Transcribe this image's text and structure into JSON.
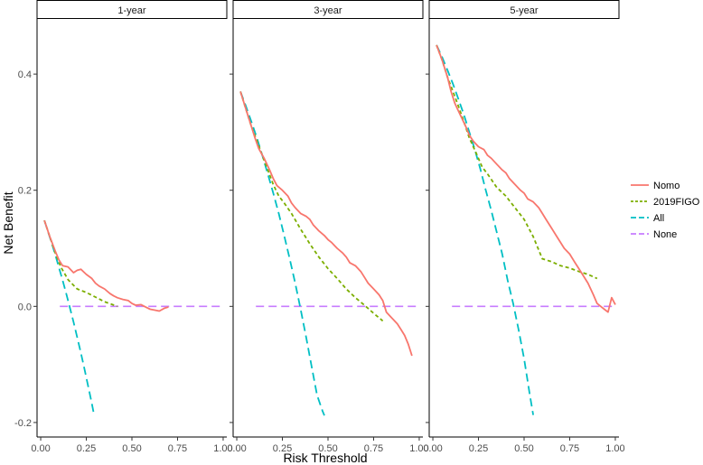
{
  "chart_data": {
    "type": "line",
    "xlabel": "Risk Threshold",
    "ylabel": "Net Benefit",
    "xlim": [
      -0.02,
      1.02
    ],
    "ylim": [
      -0.225,
      0.495
    ],
    "x_ticks": [
      "0.00",
      "0.25",
      "0.50",
      "0.75",
      "1.00"
    ],
    "x_tick_values": [
      0,
      0.25,
      0.5,
      0.75,
      1.0
    ],
    "y_ticks": [
      "-0.2",
      "0.0",
      "0.2",
      "0.4"
    ],
    "y_tick_values": [
      -0.2,
      0.0,
      0.2,
      0.4
    ],
    "grid": false,
    "legend_position": "right",
    "legend": [
      {
        "name": "Nomo",
        "color": "#F8766D",
        "dash": "solid"
      },
      {
        "name": "2019FIGO",
        "color": "#7CAE00",
        "dash": "dotted"
      },
      {
        "name": "All",
        "color": "#00BFC4",
        "dash": "dashed"
      },
      {
        "name": "None",
        "color": "#C77CFF",
        "dash": "dashed"
      }
    ],
    "panels": [
      {
        "title": "1-year",
        "series": [
          {
            "name": "Nomo",
            "x": [
              0.02,
              0.05,
              0.08,
              0.1,
              0.12,
              0.15,
              0.18,
              0.2,
              0.22,
              0.25,
              0.28,
              0.3,
              0.32,
              0.35,
              0.38,
              0.4,
              0.42,
              0.45,
              0.48,
              0.5,
              0.52,
              0.55,
              0.58,
              0.6,
              0.62,
              0.65,
              0.68,
              0.7
            ],
            "y": [
              0.148,
              0.12,
              0.095,
              0.08,
              0.07,
              0.068,
              0.058,
              0.062,
              0.064,
              0.055,
              0.048,
              0.04,
              0.035,
              0.03,
              0.022,
              0.018,
              0.015,
              0.012,
              0.01,
              0.005,
              0.002,
              0.003,
              -0.002,
              -0.005,
              -0.006,
              -0.008,
              -0.003,
              -0.001
            ]
          },
          {
            "name": "2019FIGO",
            "x": [
              0.02,
              0.05,
              0.08,
              0.11,
              0.15,
              0.2,
              0.25,
              0.3,
              0.35,
              0.42
            ],
            "y": [
              0.148,
              0.12,
              0.092,
              0.068,
              0.046,
              0.03,
              0.024,
              0.016,
              0.008,
              0.0
            ]
          },
          {
            "name": "All",
            "x": [
              0.02,
              0.04,
              0.06,
              0.08,
              0.1,
              0.12,
              0.14,
              0.16,
              0.18,
              0.2,
              0.22,
              0.24,
              0.26,
              0.28,
              0.29
            ],
            "y": [
              0.148,
              0.129,
              0.109,
              0.089,
              0.067,
              0.045,
              0.022,
              -0.002,
              -0.027,
              -0.053,
              -0.08,
              -0.108,
              -0.137,
              -0.167,
              -0.183
            ]
          },
          {
            "name": "None",
            "x": [
              0.0,
              1.0
            ],
            "y": [
              0.0,
              0.0
            ]
          }
        ]
      },
      {
        "title": "3-year",
        "series": [
          {
            "name": "Nomo",
            "x": [
              0.02,
              0.05,
              0.08,
              0.1,
              0.12,
              0.15,
              0.18,
              0.2,
              0.22,
              0.25,
              0.28,
              0.3,
              0.32,
              0.35,
              0.38,
              0.4,
              0.42,
              0.45,
              0.48,
              0.5,
              0.52,
              0.55,
              0.58,
              0.6,
              0.62,
              0.65,
              0.68,
              0.7,
              0.72,
              0.75,
              0.78,
              0.8,
              0.82,
              0.85,
              0.88,
              0.9,
              0.92,
              0.94,
              0.96
            ],
            "y": [
              0.37,
              0.34,
              0.31,
              0.29,
              0.272,
              0.255,
              0.235,
              0.22,
              0.208,
              0.2,
              0.19,
              0.178,
              0.17,
              0.16,
              0.155,
              0.15,
              0.14,
              0.13,
              0.122,
              0.115,
              0.11,
              0.1,
              0.092,
              0.085,
              0.075,
              0.07,
              0.06,
              0.05,
              0.04,
              0.03,
              0.02,
              0.01,
              -0.01,
              -0.02,
              -0.03,
              -0.04,
              -0.05,
              -0.065,
              -0.085
            ]
          },
          {
            "name": "2019FIGO",
            "x": [
              0.02,
              0.05,
              0.08,
              0.11,
              0.14,
              0.17,
              0.2,
              0.23,
              0.26,
              0.3,
              0.35,
              0.4,
              0.45,
              0.5,
              0.55,
              0.6,
              0.65,
              0.7,
              0.75,
              0.8
            ],
            "y": [
              0.37,
              0.34,
              0.31,
              0.285,
              0.26,
              0.235,
              0.21,
              0.19,
              0.178,
              0.16,
              0.133,
              0.108,
              0.085,
              0.065,
              0.048,
              0.03,
              0.015,
              0.002,
              -0.012,
              -0.025
            ]
          },
          {
            "name": "All",
            "x": [
              0.02,
              0.05,
              0.08,
              0.11,
              0.14,
              0.17,
              0.2,
              0.23,
              0.26,
              0.29,
              0.32,
              0.35,
              0.38,
              0.41,
              0.44,
              0.47,
              0.48
            ],
            "y": [
              0.37,
              0.345,
              0.318,
              0.29,
              0.26,
              0.228,
              0.195,
              0.16,
              0.122,
              0.082,
              0.04,
              -0.005,
              -0.053,
              -0.103,
              -0.153,
              -0.18,
              -0.188
            ]
          },
          {
            "name": "None",
            "x": [
              0.0,
              1.0
            ],
            "y": [
              0.0,
              0.0
            ]
          }
        ]
      },
      {
        "title": "5-year",
        "series": [
          {
            "name": "Nomo",
            "x": [
              0.02,
              0.05,
              0.08,
              0.1,
              0.12,
              0.15,
              0.18,
              0.2,
              0.22,
              0.25,
              0.28,
              0.3,
              0.32,
              0.35,
              0.38,
              0.4,
              0.42,
              0.45,
              0.48,
              0.5,
              0.52,
              0.55,
              0.58,
              0.6,
              0.62,
              0.65,
              0.68,
              0.7,
              0.72,
              0.75,
              0.78,
              0.8,
              0.82,
              0.85,
              0.88,
              0.9,
              0.92,
              0.94,
              0.96,
              0.98,
              1.0
            ],
            "y": [
              0.45,
              0.425,
              0.395,
              0.37,
              0.35,
              0.33,
              0.31,
              0.295,
              0.285,
              0.275,
              0.27,
              0.26,
              0.255,
              0.245,
              0.235,
              0.23,
              0.22,
              0.21,
              0.2,
              0.195,
              0.185,
              0.18,
              0.17,
              0.16,
              0.15,
              0.135,
              0.12,
              0.11,
              0.1,
              0.09,
              0.075,
              0.065,
              0.055,
              0.04,
              0.02,
              0.005,
              0.0,
              -0.005,
              -0.01,
              0.015,
              0.003
            ]
          },
          {
            "name": "2019FIGO",
            "x": [
              0.02,
              0.05,
              0.08,
              0.11,
              0.14,
              0.17,
              0.2,
              0.24,
              0.27,
              0.3,
              0.35,
              0.4,
              0.45,
              0.5,
              0.55,
              0.6,
              0.65,
              0.7,
              0.75,
              0.8,
              0.85,
              0.9
            ],
            "y": [
              0.45,
              0.425,
              0.395,
              0.37,
              0.345,
              0.318,
              0.29,
              0.262,
              0.24,
              0.228,
              0.205,
              0.19,
              0.17,
              0.15,
              0.12,
              0.082,
              0.077,
              0.07,
              0.066,
              0.06,
              0.055,
              0.048
            ]
          },
          {
            "name": "All",
            "x": [
              0.02,
              0.05,
              0.08,
              0.11,
              0.14,
              0.17,
              0.2,
              0.23,
              0.26,
              0.29,
              0.32,
              0.35,
              0.38,
              0.41,
              0.44,
              0.47,
              0.5,
              0.53,
              0.55
            ],
            "y": [
              0.45,
              0.43,
              0.407,
              0.383,
              0.357,
              0.33,
              0.3,
              0.27,
              0.237,
              0.2,
              0.165,
              0.128,
              0.09,
              0.045,
              0.005,
              -0.04,
              -0.09,
              -0.15,
              -0.187
            ]
          },
          {
            "name": "None",
            "x": [
              0.0,
              1.0
            ],
            "y": [
              0.0,
              0.0
            ]
          }
        ]
      }
    ]
  }
}
